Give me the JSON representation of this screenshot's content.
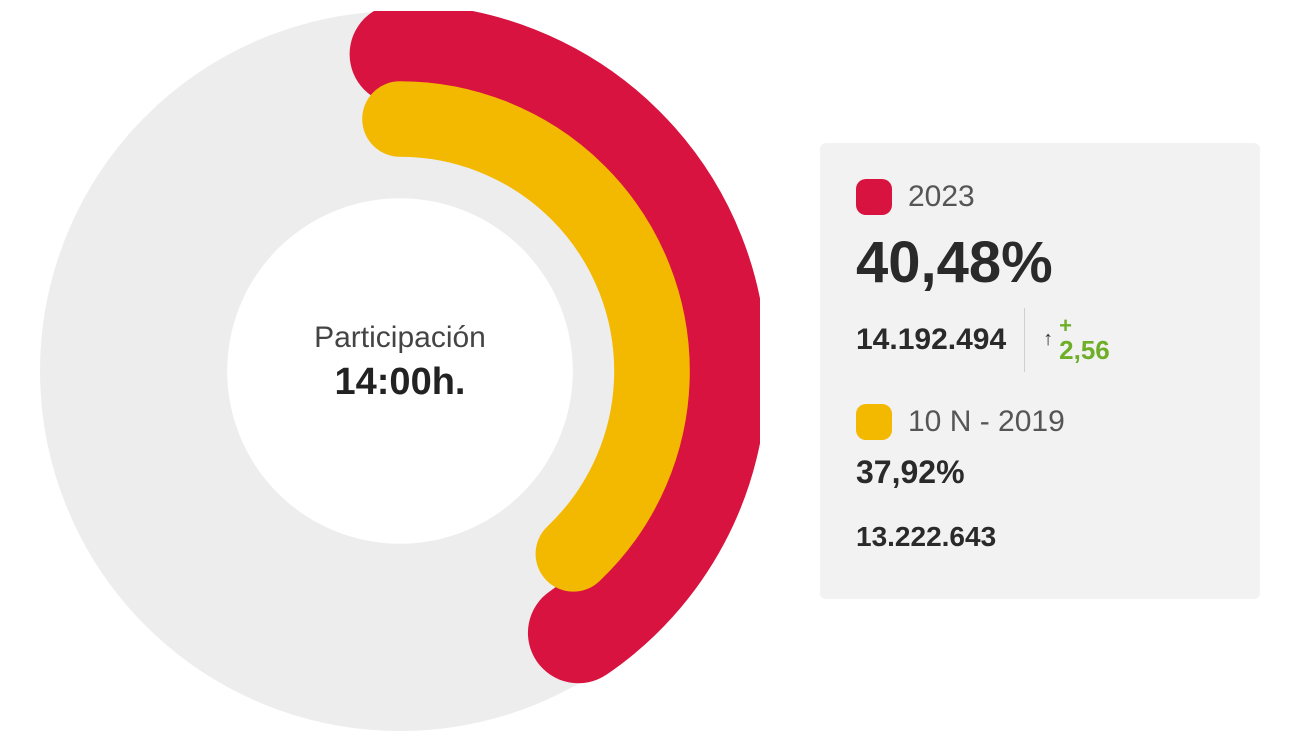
{
  "chart": {
    "type": "radial-progress",
    "background_color": "#ffffff",
    "ring_track_color": "#ededed",
    "inner_radius_ratio": 0.48,
    "outer_radius_ratio": 1.0,
    "start_angle_deg": 0,
    "cap": "round",
    "center_label": {
      "line1": "Participación",
      "line2": "14:00h.",
      "line1_fontsize": 30,
      "line2_fontsize": 38,
      "line1_color": "#444444",
      "line2_color": "#222222"
    },
    "series": [
      {
        "key": "current",
        "value_pct": 40.48,
        "color": "#d81340",
        "ring_radius_ratio": 0.88,
        "stroke_width_ratio": 0.14
      },
      {
        "key": "previous",
        "value_pct": 37.92,
        "color": "#f3b800",
        "ring_radius_ratio": 0.7,
        "stroke_width_ratio": 0.105
      }
    ]
  },
  "legend": {
    "card_bg": "#f2f2f2",
    "current": {
      "swatch_color": "#d81340",
      "label": "2023",
      "pct_display": "40,48%",
      "abs_value": "14.192.494",
      "delta_sign": "+",
      "delta_value": "2,56",
      "delta_color": "#6fae29"
    },
    "previous": {
      "swatch_color": "#f3b800",
      "label": "10 N - 2019",
      "pct_display": "37,92%",
      "abs_value": "13.222.643"
    }
  }
}
